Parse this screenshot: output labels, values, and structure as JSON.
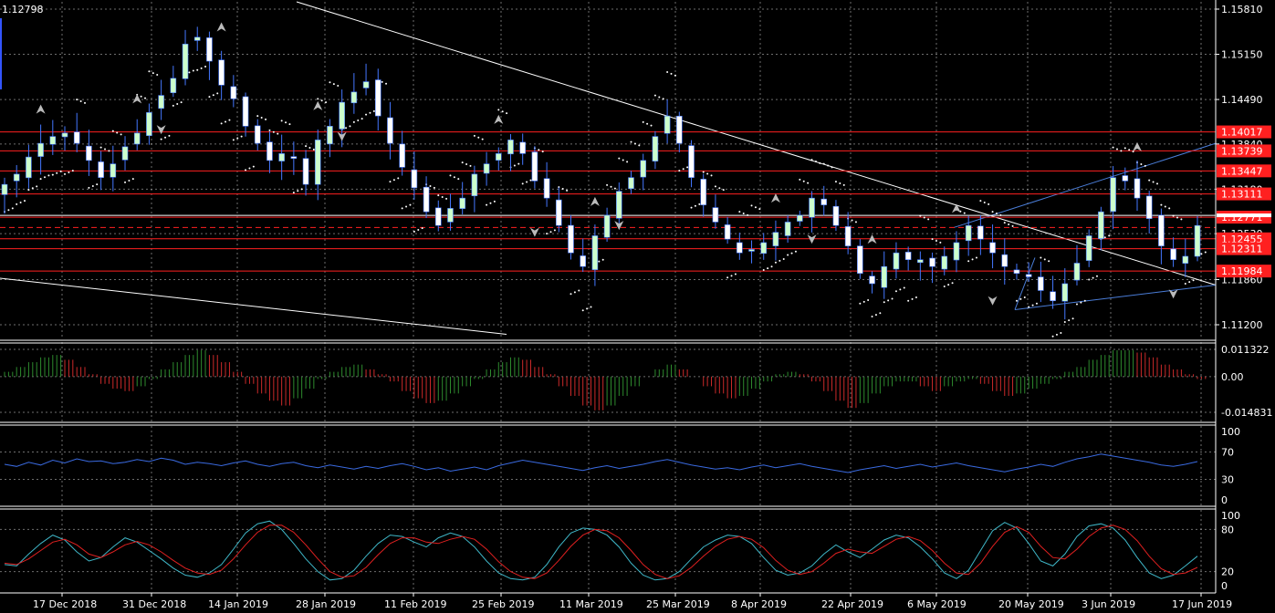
{
  "header": {
    "price_readout": "1.12798"
  },
  "colors": {
    "background": "#000000",
    "grid": "#c8c8c8",
    "bull_body": "#ccffcc",
    "bear_body": "#ffffff",
    "wick": "#4477ff",
    "level_line": "#ff2020",
    "trend_white": "#ffffff",
    "channel_blue": "#4a7dd8",
    "osc_up": "#2e8b2e",
    "osc_down": "#cc2a2a",
    "rsi_line": "#3a6ae0",
    "stoch_main": "#3fb7c8",
    "stoch_signal": "#e02020"
  },
  "price_axis": {
    "ticks": [
      "1.15810",
      "1.15150",
      "1.14490",
      "1.13840",
      "1.13180",
      "1.12530",
      "1.11860",
      "1.11200"
    ],
    "top": 1.1581,
    "bottom": 1.112
  },
  "levels": [
    {
      "label": "1.14017",
      "value": 1.14017
    },
    {
      "label": "1.13739",
      "value": 1.13739
    },
    {
      "label": "1.13447",
      "value": 1.13447
    },
    {
      "label": "1.13111",
      "value": 1.13111
    },
    {
      "label": "1.12771",
      "value": 1.12771
    },
    {
      "label": "1.12455",
      "value": 1.12455
    },
    {
      "label": "1.12311",
      "value": 1.12311
    },
    {
      "label": "1.11984",
      "value": 1.11984
    }
  ],
  "current_price": 1.12798,
  "date_axis": [
    "17 Dec 2018",
    "31 Dec 2018",
    "14 Jan 2019",
    "28 Jan 2019",
    "11 Feb 2019",
    "25 Feb 2019",
    "11 Mar 2019",
    "25 Mar 2019",
    "8 Apr 2019",
    "22 Apr 2019",
    "6 May 2019",
    "20 May 2019",
    "3 Jun 2019",
    "17 Jun 2019"
  ],
  "oscillator_axis": [
    "0.011322",
    "0.00",
    "-0.014831"
  ],
  "rsi_axis": [
    "100",
    "70",
    "30",
    "0"
  ],
  "stoch_axis": [
    "100",
    "80",
    "20",
    "0"
  ],
  "chart_data": [
    {
      "type": "candlestick",
      "title": "",
      "ylim": [
        1.112,
        1.1581
      ],
      "x": [
        "17 Dec 2018",
        "31 Dec 2018",
        "14 Jan 2019",
        "28 Jan 2019",
        "11 Feb 2019",
        "25 Feb 2019",
        "11 Mar 2019",
        "25 Mar 2019",
        "8 Apr 2019",
        "22 Apr 2019",
        "6 May 2019",
        "20 May 2019",
        "3 Jun 2019",
        "17 Jun 2019"
      ],
      "close_path": [
        1.1325,
        1.134,
        1.1365,
        1.1385,
        1.1395,
        1.14,
        1.1385,
        1.136,
        1.1335,
        1.1355,
        1.138,
        1.14,
        1.143,
        1.1455,
        1.148,
        1.153,
        1.154,
        1.1505,
        1.147,
        1.145,
        1.141,
        1.1385,
        1.136,
        1.137,
        1.1365,
        1.1325,
        1.139,
        1.141,
        1.1445,
        1.146,
        1.1475,
        1.1425,
        1.1385,
        1.135,
        1.132,
        1.1285,
        1.1265,
        1.129,
        1.1305,
        1.134,
        1.1355,
        1.137,
        1.139,
        1.137,
        1.133,
        1.1305,
        1.1265,
        1.1225,
        1.1205,
        1.125,
        1.128,
        1.1315,
        1.1335,
        1.136,
        1.1395,
        1.1425,
        1.1385,
        1.1335,
        1.1295,
        1.127,
        1.1245,
        1.1225,
        1.123,
        1.124,
        1.1255,
        1.127,
        1.128,
        1.1305,
        1.1295,
        1.1265,
        1.1235,
        1.1195,
        1.118,
        1.1205,
        1.1225,
        1.1215,
        1.1215,
        1.1205,
        1.122,
        1.124,
        1.1265,
        1.1245,
        1.1225,
        1.1205,
        1.1195,
        1.119,
        1.117,
        1.1155,
        1.118,
        1.121,
        1.125,
        1.1285,
        1.1335,
        1.133,
        1.1305,
        1.1275,
        1.1235,
        1.1215,
        1.122,
        1.1265
      ],
      "fractals_up": [
        "17 Dec 2018",
        "31 Dec 2018",
        "14 Jan 2019",
        "28 Jan 2019",
        "25 Feb 2019",
        "11 Mar 2019",
        "8 Apr 2019",
        "22 Apr 2019",
        "6 May 2019",
        "3 Jun 2019"
      ],
      "fractals_down": [
        "14 Jan 2019",
        "11 Feb 2019",
        "11 Mar 2019",
        "25 Mar 2019",
        "22 Apr 2019",
        "20 May 2019",
        "17 Jun 2019"
      ]
    },
    {
      "type": "bar",
      "title": "",
      "ylim": [
        -0.014831,
        0.011322
      ],
      "values": [
        0.002,
        0.004,
        0.006,
        0.008,
        0.009,
        0.007,
        0.004,
        0.001,
        -0.003,
        -0.005,
        -0.006,
        -0.004,
        -0.001,
        0.003,
        0.006,
        0.009,
        0.011,
        0.009,
        0.006,
        0.002,
        -0.003,
        -0.007,
        -0.01,
        -0.012,
        -0.009,
        -0.005,
        -0.001,
        0.002,
        0.004,
        0.005,
        0.003,
        0.001,
        -0.002,
        -0.006,
        -0.009,
        -0.011,
        -0.01,
        -0.007,
        -0.004,
        -0.001,
        0.003,
        0.006,
        0.008,
        0.007,
        0.004,
        0.001,
        -0.004,
        -0.008,
        -0.012,
        -0.014,
        -0.012,
        -0.008,
        -0.004,
        0.0,
        0.003,
        0.005,
        0.003,
        0.0,
        -0.004,
        -0.007,
        -0.009,
        -0.008,
        -0.005,
        -0.002,
        0.001,
        0.002,
        0.001,
        -0.002,
        -0.006,
        -0.01,
        -0.013,
        -0.011,
        -0.007,
        -0.004,
        -0.002,
        -0.002,
        -0.004,
        -0.006,
        -0.004,
        -0.002,
        -0.001,
        -0.003,
        -0.006,
        -0.008,
        -0.007,
        -0.005,
        -0.003,
        -0.001,
        0.002,
        0.004,
        0.007,
        0.009,
        0.011,
        0.011,
        0.01,
        0.008,
        0.005,
        0.003,
        0.001,
        -0.001
      ]
    },
    {
      "type": "line",
      "title": "",
      "ylim": [
        0,
        100
      ],
      "values": [
        52,
        49,
        55,
        51,
        58,
        54,
        60,
        56,
        57,
        53,
        55,
        59,
        56,
        61,
        58,
        52,
        55,
        53,
        50,
        54,
        57,
        52,
        49,
        53,
        55,
        50,
        47,
        51,
        48,
        45,
        49,
        46,
        50,
        53,
        49,
        44,
        47,
        42,
        45,
        48,
        44,
        50,
        54,
        58,
        55,
        52,
        49,
        46,
        43,
        47,
        50,
        46,
        49,
        52,
        56,
        59,
        55,
        51,
        48,
        45,
        47,
        44,
        48,
        51,
        47,
        50,
        53,
        49,
        46,
        43,
        40,
        44,
        47,
        50,
        46,
        49,
        52,
        48,
        51,
        54,
        50,
        47,
        44,
        41,
        45,
        48,
        52,
        49,
        55,
        60,
        63,
        67,
        64,
        61,
        58,
        55,
        51,
        49,
        52,
        56
      ]
    },
    {
      "type": "line",
      "title": "",
      "ylim": [
        0,
        100
      ],
      "series": [
        {
          "values": [
            30,
            28,
            45,
            60,
            72,
            65,
            48,
            35,
            40,
            55,
            68,
            62,
            50,
            38,
            25,
            15,
            12,
            18,
            30,
            52,
            75,
            88,
            92,
            80,
            60,
            38,
            20,
            8,
            10,
            22,
            42,
            60,
            72,
            70,
            62,
            55,
            68,
            75,
            70,
            55,
            35,
            18,
            10,
            8,
            12,
            30,
            55,
            75,
            82,
            80,
            72,
            55,
            32,
            15,
            8,
            10,
            20,
            38,
            55,
            65,
            72,
            70,
            60,
            40,
            22,
            15,
            18,
            28,
            45,
            58,
            48,
            40,
            52,
            65,
            72,
            68,
            55,
            38,
            18,
            10,
            22,
            50,
            78,
            90,
            82,
            60,
            35,
            28,
            45,
            70,
            85,
            88,
            82,
            65,
            40,
            18,
            10,
            15,
            28,
            42
          ]
        },
        {
          "values": [
            32,
            30,
            38,
            50,
            62,
            66,
            58,
            45,
            40,
            48,
            58,
            63,
            58,
            48,
            36,
            25,
            18,
            16,
            22,
            38,
            58,
            76,
            86,
            86,
            76,
            58,
            38,
            20,
            12,
            14,
            26,
            44,
            60,
            68,
            68,
            62,
            60,
            66,
            70,
            66,
            52,
            34,
            20,
            12,
            10,
            18,
            36,
            56,
            72,
            80,
            78,
            68,
            50,
            30,
            16,
            10,
            14,
            26,
            42,
            56,
            66,
            70,
            66,
            54,
            36,
            22,
            16,
            20,
            32,
            46,
            52,
            48,
            46,
            56,
            66,
            70,
            64,
            50,
            32,
            18,
            16,
            32,
            56,
            76,
            84,
            76,
            56,
            40,
            38,
            52,
            70,
            82,
            86,
            80,
            64,
            42,
            24,
            16,
            18,
            26
          ]
        }
      ]
    }
  ]
}
